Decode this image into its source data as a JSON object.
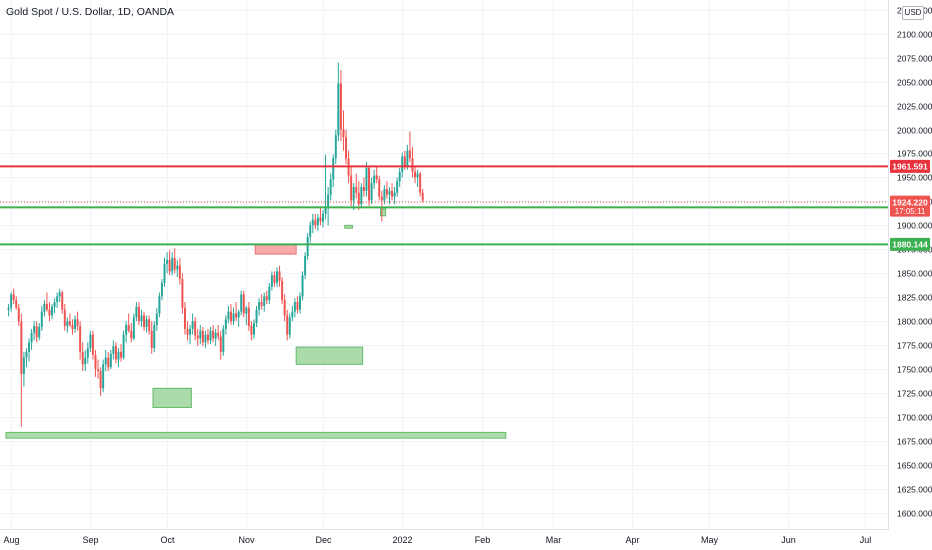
{
  "chart_data": {
    "type": "candlestick",
    "title": "Gold Spot / U.S. Dollar, 1D, OANDA",
    "currency": "USD",
    "ylim": [
      1590,
      2120
    ],
    "y_ticks": [
      "1600.000",
      "1625.000",
      "1650.000",
      "1675.000",
      "1700.000",
      "1725.000",
      "1750.000",
      "1775.000",
      "1800.000",
      "1825.000",
      "1850.000",
      "1875.000",
      "1900.000",
      "1925.000",
      "1950.000",
      "1975.000",
      "2000.000",
      "2025.000",
      "2050.000",
      "2075.000",
      "2100.000",
      "2125.000"
    ],
    "x_ticks": [
      {
        "label": "Aug",
        "day": 1
      },
      {
        "label": "Sep",
        "day": 32
      },
      {
        "label": "Oct",
        "day": 62
      },
      {
        "label": "Nov",
        "day": 93
      },
      {
        "label": "Dec",
        "day": 123
      },
      {
        "label": "2022",
        "day": 154
      },
      {
        "label": "Feb",
        "day": 185
      },
      {
        "label": "Mar",
        "day": 213
      },
      {
        "label": "Apr",
        "day": 244
      },
      {
        "label": "May",
        "day": 274
      },
      {
        "label": "Jun",
        "day": 305
      },
      {
        "label": "Jul",
        "day": 335
      }
    ],
    "x_range_days": [
      -1,
      344
    ],
    "candles": [
      [
        0,
        1812,
        1818,
        1805,
        1814
      ],
      [
        1,
        1814,
        1830,
        1810,
        1828
      ],
      [
        2,
        1828,
        1834,
        1818,
        1822
      ],
      [
        3,
        1822,
        1826,
        1812,
        1814
      ],
      [
        4,
        1814,
        1818,
        1795,
        1800
      ],
      [
        5,
        1800,
        1808,
        1690,
        1745
      ],
      [
        6,
        1745,
        1768,
        1732,
        1762
      ],
      [
        7,
        1762,
        1772,
        1752,
        1768
      ],
      [
        8,
        1768,
        1782,
        1758,
        1778
      ],
      [
        9,
        1778,
        1792,
        1770,
        1788
      ],
      [
        10,
        1788,
        1800,
        1780,
        1795
      ],
      [
        11,
        1795,
        1800,
        1778,
        1783
      ],
      [
        12,
        1783,
        1798,
        1780,
        1794
      ],
      [
        13,
        1794,
        1816,
        1790,
        1810
      ],
      [
        14,
        1810,
        1822,
        1805,
        1818
      ],
      [
        15,
        1818,
        1830,
        1810,
        1812
      ],
      [
        16,
        1812,
        1820,
        1800,
        1806
      ],
      [
        17,
        1806,
        1818,
        1802,
        1815
      ],
      [
        18,
        1815,
        1824,
        1808,
        1820
      ],
      [
        19,
        1820,
        1830,
        1814,
        1826
      ],
      [
        20,
        1826,
        1834,
        1820,
        1830
      ],
      [
        21,
        1830,
        1832,
        1808,
        1812
      ],
      [
        22,
        1812,
        1818,
        1790,
        1795
      ],
      [
        23,
        1795,
        1804,
        1788,
        1800
      ],
      [
        24,
        1800,
        1808,
        1794,
        1796
      ],
      [
        25,
        1796,
        1802,
        1786,
        1792
      ],
      [
        26,
        1792,
        1806,
        1788,
        1802
      ],
      [
        27,
        1802,
        1810,
        1790,
        1795
      ],
      [
        28,
        1795,
        1800,
        1760,
        1768
      ],
      [
        29,
        1768,
        1778,
        1748,
        1755
      ],
      [
        30,
        1755,
        1770,
        1748,
        1762
      ],
      [
        31,
        1762,
        1778,
        1756,
        1772
      ],
      [
        32,
        1772,
        1790,
        1768,
        1786
      ],
      [
        33,
        1786,
        1790,
        1760,
        1765
      ],
      [
        34,
        1765,
        1770,
        1742,
        1750
      ],
      [
        35,
        1750,
        1760,
        1740,
        1748
      ],
      [
        36,
        1748,
        1752,
        1722,
        1730
      ],
      [
        37,
        1730,
        1760,
        1726,
        1755
      ],
      [
        38,
        1755,
        1770,
        1748,
        1762
      ],
      [
        39,
        1762,
        1768,
        1748,
        1752
      ],
      [
        40,
        1752,
        1770,
        1750,
        1766
      ],
      [
        41,
        1766,
        1780,
        1760,
        1774
      ],
      [
        42,
        1774,
        1778,
        1756,
        1760
      ],
      [
        43,
        1760,
        1772,
        1752,
        1768
      ],
      [
        44,
        1768,
        1776,
        1758,
        1762
      ],
      [
        45,
        1762,
        1790,
        1760,
        1786
      ],
      [
        46,
        1786,
        1800,
        1778,
        1796
      ],
      [
        47,
        1796,
        1808,
        1788,
        1790
      ],
      [
        48,
        1790,
        1798,
        1778,
        1782
      ],
      [
        49,
        1782,
        1808,
        1780,
        1804
      ],
      [
        50,
        1804,
        1820,
        1800,
        1815
      ],
      [
        51,
        1815,
        1820,
        1796,
        1800
      ],
      [
        52,
        1800,
        1812,
        1794,
        1806
      ],
      [
        53,
        1806,
        1810,
        1790,
        1794
      ],
      [
        54,
        1794,
        1806,
        1788,
        1802
      ],
      [
        55,
        1802,
        1806,
        1786,
        1790
      ],
      [
        56,
        1790,
        1800,
        1766,
        1772
      ],
      [
        57,
        1772,
        1800,
        1768,
        1796
      ],
      [
        58,
        1796,
        1814,
        1790,
        1808
      ],
      [
        59,
        1808,
        1830,
        1804,
        1826
      ],
      [
        60,
        1826,
        1844,
        1822,
        1840
      ],
      [
        61,
        1840,
        1866,
        1836,
        1860
      ],
      [
        62,
        1860,
        1872,
        1850,
        1864
      ],
      [
        63,
        1864,
        1874,
        1848,
        1852
      ],
      [
        64,
        1852,
        1872,
        1848,
        1866
      ],
      [
        65,
        1866,
        1876,
        1850,
        1854
      ],
      [
        66,
        1854,
        1864,
        1846,
        1858
      ],
      [
        67,
        1858,
        1866,
        1838,
        1844
      ],
      [
        68,
        1844,
        1850,
        1808,
        1814
      ],
      [
        69,
        1814,
        1820,
        1786,
        1792
      ],
      [
        70,
        1792,
        1800,
        1780,
        1786
      ],
      [
        71,
        1786,
        1796,
        1776,
        1792
      ],
      [
        72,
        1792,
        1808,
        1786,
        1800
      ],
      [
        73,
        1800,
        1804,
        1780,
        1785
      ],
      [
        74,
        1785,
        1792,
        1774,
        1782
      ],
      [
        75,
        1782,
        1796,
        1776,
        1790
      ],
      [
        76,
        1790,
        1794,
        1774,
        1778
      ],
      [
        77,
        1778,
        1790,
        1772,
        1786
      ],
      [
        78,
        1786,
        1792,
        1776,
        1780
      ],
      [
        79,
        1780,
        1794,
        1776,
        1790
      ],
      [
        80,
        1790,
        1796,
        1778,
        1782
      ],
      [
        81,
        1782,
        1792,
        1774,
        1788
      ],
      [
        82,
        1788,
        1796,
        1780,
        1784
      ],
      [
        83,
        1784,
        1790,
        1760,
        1768
      ],
      [
        84,
        1768,
        1796,
        1764,
        1792
      ],
      [
        85,
        1792,
        1806,
        1786,
        1802
      ],
      [
        86,
        1802,
        1816,
        1798,
        1810
      ],
      [
        87,
        1810,
        1818,
        1796,
        1800
      ],
      [
        88,
        1800,
        1814,
        1796,
        1808
      ],
      [
        89,
        1808,
        1820,
        1800,
        1804
      ],
      [
        90,
        1804,
        1812,
        1794,
        1810
      ],
      [
        91,
        1810,
        1832,
        1806,
        1828
      ],
      [
        92,
        1828,
        1832,
        1804,
        1808
      ],
      [
        93,
        1808,
        1816,
        1796,
        1814
      ],
      [
        94,
        1814,
        1820,
        1790,
        1795
      ],
      [
        95,
        1795,
        1800,
        1780,
        1786
      ],
      [
        96,
        1786,
        1802,
        1782,
        1798
      ],
      [
        97,
        1798,
        1816,
        1794,
        1812
      ],
      [
        98,
        1812,
        1824,
        1806,
        1820
      ],
      [
        99,
        1820,
        1828,
        1812,
        1816
      ],
      [
        100,
        1816,
        1830,
        1810,
        1826
      ],
      [
        101,
        1826,
        1832,
        1818,
        1822
      ],
      [
        102,
        1822,
        1840,
        1818,
        1836
      ],
      [
        103,
        1836,
        1852,
        1832,
        1848
      ],
      [
        104,
        1848,
        1852,
        1836,
        1840
      ],
      [
        105,
        1840,
        1856,
        1836,
        1852
      ],
      [
        106,
        1852,
        1858,
        1836,
        1842
      ],
      [
        107,
        1842,
        1846,
        1818,
        1822
      ],
      [
        108,
        1822,
        1828,
        1800,
        1806
      ],
      [
        109,
        1806,
        1812,
        1780,
        1786
      ],
      [
        110,
        1786,
        1808,
        1782,
        1804
      ],
      [
        111,
        1804,
        1816,
        1800,
        1810
      ],
      [
        112,
        1810,
        1824,
        1804,
        1820
      ],
      [
        113,
        1820,
        1826,
        1808,
        1812
      ],
      [
        114,
        1812,
        1830,
        1808,
        1826
      ],
      [
        115,
        1826,
        1852,
        1822,
        1848
      ],
      [
        116,
        1848,
        1872,
        1844,
        1868
      ],
      [
        117,
        1868,
        1892,
        1864,
        1888
      ],
      [
        118,
        1888,
        1904,
        1882,
        1900
      ],
      [
        119,
        1900,
        1912,
        1892,
        1906
      ],
      [
        120,
        1906,
        1912,
        1896,
        1900
      ],
      [
        121,
        1900,
        1912,
        1894,
        1908
      ],
      [
        122,
        1908,
        1918,
        1900,
        1904
      ],
      [
        123,
        1904,
        1916,
        1898,
        1912
      ],
      [
        124,
        1912,
        1974,
        1906,
        1920
      ],
      [
        125,
        1920,
        1940,
        1900,
        1932
      ],
      [
        126,
        1932,
        1954,
        1926,
        1948
      ],
      [
        127,
        1948,
        1974,
        1940,
        1970
      ],
      [
        128,
        1970,
        2000,
        1964,
        1994
      ],
      [
        129,
        1994,
        2070,
        1988,
        2048
      ],
      [
        130,
        2048,
        2062,
        1988,
        2000
      ],
      [
        131,
        2000,
        2020,
        1978,
        1992
      ],
      [
        132,
        1992,
        2000,
        1964,
        1970
      ],
      [
        133,
        1970,
        1978,
        1944,
        1952
      ],
      [
        134,
        1952,
        1962,
        1920,
        1926
      ],
      [
        135,
        1926,
        1944,
        1916,
        1940
      ],
      [
        136,
        1940,
        1954,
        1928,
        1934
      ],
      [
        137,
        1934,
        1946,
        1916,
        1922
      ],
      [
        138,
        1922,
        1944,
        1918,
        1940
      ],
      [
        139,
        1940,
        1950,
        1930,
        1936
      ],
      [
        140,
        1936,
        1966,
        1930,
        1960
      ],
      [
        141,
        1960,
        1962,
        1920,
        1926
      ],
      [
        142,
        1926,
        1950,
        1922,
        1944
      ],
      [
        143,
        1944,
        1958,
        1938,
        1952
      ],
      [
        144,
        1952,
        1962,
        1944,
        1948
      ],
      [
        145,
        1948,
        1952,
        1926,
        1930
      ],
      [
        146,
        1930,
        1936,
        1904,
        1926
      ],
      [
        147,
        1926,
        1942,
        1922,
        1938
      ],
      [
        148,
        1938,
        1946,
        1928,
        1932
      ],
      [
        149,
        1932,
        1940,
        1922,
        1936
      ],
      [
        150,
        1936,
        1944,
        1926,
        1930
      ],
      [
        151,
        1930,
        1940,
        1922,
        1934
      ],
      [
        152,
        1934,
        1950,
        1930,
        1946
      ],
      [
        153,
        1946,
        1960,
        1940,
        1956
      ],
      [
        154,
        1956,
        1976,
        1950,
        1972
      ],
      [
        155,
        1972,
        1978,
        1958,
        1962
      ],
      [
        156,
        1962,
        1984,
        1958,
        1978
      ],
      [
        157,
        1978,
        1998,
        1966,
        1970
      ],
      [
        158,
        1970,
        1982,
        1950,
        1956
      ],
      [
        159,
        1956,
        1962,
        1944,
        1950
      ],
      [
        160,
        1950,
        1958,
        1940,
        1954
      ],
      [
        161,
        1954,
        1956,
        1930,
        1934
      ],
      [
        162,
        1934,
        1938,
        1924,
        1926
      ]
    ],
    "horizontal_lines": [
      {
        "price": 1961.591,
        "label": "1961.591",
        "color": "#e8323c"
      },
      {
        "price": 1918.819,
        "label": "1918.819",
        "color": "#3caf50"
      },
      {
        "price": 1880.144,
        "label": "1880.144",
        "color": "#3caf50"
      }
    ],
    "current_price": {
      "price": 1924.22,
      "label": "1924.220",
      "countdown": "17:05:11",
      "color": "#ef5350"
    },
    "zones": [
      {
        "kind": "supply",
        "x0": 96.5,
        "x1": 112.5,
        "y0": 1870,
        "y1": 1880,
        "color": "#f7a4a8"
      },
      {
        "kind": "demand",
        "x0": 56.5,
        "x1": 71.5,
        "y0": 1710,
        "y1": 1730,
        "color": "#a6d8a6"
      },
      {
        "kind": "demand",
        "x0": 112.5,
        "x1": 138.5,
        "y0": 1755,
        "y1": 1773,
        "color": "#a6d8a6"
      },
      {
        "kind": "demand",
        "x0": -1,
        "x1": 194.5,
        "y0": 1678,
        "y1": 1684,
        "color": "#a6d8a6"
      },
      {
        "kind": "demand",
        "x0": 131.5,
        "x1": 134.5,
        "y0": 1897,
        "y1": 1900,
        "color": "#a6d8a6"
      },
      {
        "kind": "demand",
        "x0": 145.5,
        "x1": 147.5,
        "y0": 1910,
        "y1": 1917,
        "color": "#a6d8a6"
      }
    ],
    "colors": {
      "up": "#26a69a",
      "down": "#ef5350",
      "grid": "#f0f3fa",
      "text": "#131722"
    }
  }
}
